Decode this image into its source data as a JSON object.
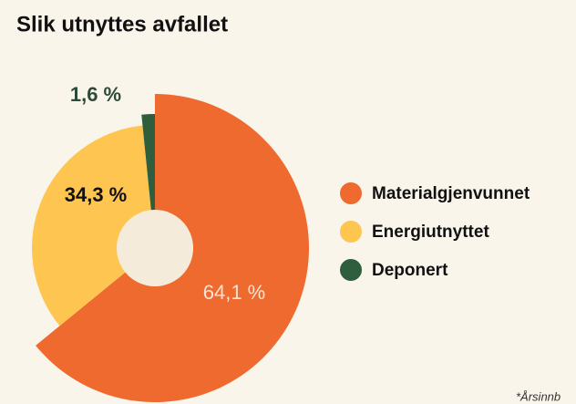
{
  "chart_data": {
    "type": "pie",
    "title": "Slik utnyttes avfallet",
    "categories": [
      "Materialgjenvunnet",
      "Energiutnyttet",
      "Deponert"
    ],
    "values": [
      64.1,
      34.3,
      1.6
    ],
    "value_labels": [
      "64,1 %",
      "34,3 %",
      "1,6 %"
    ],
    "colors": [
      "#ee6a2f",
      "#fec651",
      "#2f5e3e"
    ],
    "legend": "right",
    "note": "*Årsinnb"
  }
}
